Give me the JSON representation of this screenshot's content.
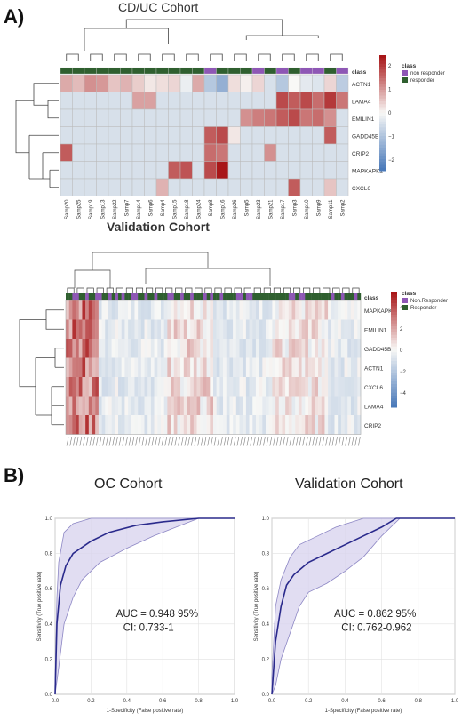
{
  "panelA": {
    "letter": "A)",
    "heatmap1": {
      "title": "CD/UC Cohort",
      "class_header": "class",
      "legend_title": "class",
      "legend_items": [
        {
          "label": "non responder",
          "color": "#8e57b5"
        },
        {
          "label": "responder",
          "color": "#2f5f2f"
        }
      ],
      "scale_ticks": [
        "2",
        "1",
        "0",
        "−1",
        "−2"
      ],
      "genes": [
        "ACTN1",
        "LAMA4",
        "EMILIN1",
        "GADD45B",
        "CRIP2",
        "MAPKAPK2",
        "CXCL6"
      ],
      "samples": [
        "Samp20",
        "Samp25",
        "Samp19",
        "Samp13",
        "Samp22",
        "Samp7",
        "Samp14",
        "Samp6",
        "Samp4",
        "Samp15",
        "Samp18",
        "Samp24",
        "Samp8",
        "Samp16",
        "Samp26",
        "Samp5",
        "Samp23",
        "Samp21",
        "Samp17",
        "Samp3",
        "Samp10",
        "Samp9",
        "Samp11",
        "Samp2"
      ],
      "classes": [
        "r",
        "r",
        "r",
        "r",
        "r",
        "r",
        "r",
        "r",
        "r",
        "r",
        "r",
        "r",
        "n",
        "r",
        "r",
        "r",
        "n",
        "r",
        "n",
        "r",
        "n",
        "n",
        "r",
        "n"
      ],
      "values": [
        [
          0.9,
          0.7,
          1.2,
          1.1,
          0.6,
          0.8,
          0.5,
          0.2,
          0.3,
          0.4,
          -0.2,
          0.9,
          -1.0,
          -1.5,
          0.3,
          0.1,
          0.4,
          -0.5,
          -1.0,
          0.0,
          -0.3,
          -0.4,
          0.4,
          -0.9
        ],
        [
          -0.5,
          -0.5,
          -0.5,
          -0.5,
          -0.5,
          -0.5,
          1.0,
          1.0,
          -0.5,
          -0.5,
          -0.5,
          -0.5,
          -0.5,
          -0.5,
          -0.5,
          -0.5,
          -0.5,
          -0.5,
          2.0,
          1.8,
          2.0,
          1.6,
          2.2,
          1.5
        ],
        [
          -0.5,
          -0.5,
          -0.5,
          -0.5,
          -0.5,
          -0.5,
          -0.5,
          -0.5,
          -0.5,
          -0.5,
          -0.5,
          -0.5,
          -0.5,
          -0.5,
          -0.5,
          1.2,
          1.4,
          1.5,
          1.8,
          2.0,
          1.5,
          1.6,
          1.2,
          -0.5
        ],
        [
          -0.5,
          -0.5,
          -0.5,
          -0.5,
          -0.5,
          -0.5,
          -0.5,
          -0.5,
          -0.5,
          -0.5,
          -0.5,
          -0.5,
          1.8,
          2.0,
          0.2,
          -0.5,
          -0.5,
          -0.5,
          -0.5,
          -0.5,
          -0.5,
          -0.5,
          1.8,
          -0.5
        ],
        [
          1.8,
          -0.5,
          -0.5,
          -0.5,
          -0.5,
          -0.5,
          -0.5,
          -0.5,
          -0.5,
          -0.5,
          -0.5,
          -0.5,
          1.6,
          1.5,
          -0.5,
          -0.5,
          -0.5,
          1.2,
          -0.5,
          -0.5,
          -0.5,
          -0.5,
          -0.5,
          -0.5
        ],
        [
          -0.5,
          -0.5,
          -0.5,
          -0.5,
          -0.5,
          -0.5,
          -0.5,
          -0.5,
          -0.5,
          1.8,
          1.9,
          -0.5,
          2.0,
          2.6,
          -0.5,
          -0.5,
          -0.5,
          -0.5,
          -0.5,
          -0.5,
          -0.5,
          -0.5,
          -0.5,
          -0.5
        ],
        [
          -0.5,
          -0.5,
          -0.5,
          -0.5,
          -0.5,
          -0.5,
          -0.5,
          -0.5,
          0.8,
          -0.5,
          -0.5,
          -0.5,
          -0.5,
          -0.5,
          -0.5,
          -0.5,
          -0.5,
          -0.5,
          -0.5,
          1.8,
          -0.5,
          -0.5,
          0.6,
          -0.5
        ]
      ]
    },
    "heatmap2": {
      "title": "Validation Cohort",
      "class_header": "class",
      "legend_title": "class",
      "legend_items": [
        {
          "label": "Non.Responder",
          "color": "#8e57b5"
        },
        {
          "label": "Responder",
          "color": "#2f5f2f"
        }
      ],
      "scale_ticks": [
        "4",
        "2",
        "0",
        "−2",
        "−4"
      ],
      "genes": [
        "MAPKAPK2",
        "EMILIN1",
        "GADD45B",
        "ACTN1",
        "CXCL6",
        "LAMA4",
        "CRIP2"
      ]
    }
  },
  "panelB": {
    "letter": "B)",
    "roc1": {
      "title": "OC Cohort",
      "auc_line1": "AUC = 0.948 95%",
      "auc_line2": "CI: 0.733-1",
      "xlabel": "1-Specificity (False positive rate)",
      "ylabel": "Sensitivity (True positive rate)",
      "ticks": [
        "0.0",
        "0.2",
        "0.4",
        "0.6",
        "0.8",
        "1.0"
      ]
    },
    "roc2": {
      "title": "Validation Cohort",
      "auc_line1": "AUC = 0.862 95%",
      "auc_line2": "CI: 0.762-0.962",
      "xlabel": "1-Specificity (False positive rate)",
      "ylabel": "Sensitivity (True positive rate)",
      "ticks": [
        "0.0",
        "0.2",
        "0.4",
        "0.6",
        "0.8",
        "1.0"
      ]
    }
  },
  "chart_data": [
    {
      "type": "line",
      "title": "OC Cohort",
      "xlabel": "1-Specificity (False positive rate)",
      "ylabel": "Sensitivity (True positive rate)",
      "xlim": [
        0,
        1
      ],
      "ylim": [
        0,
        1
      ],
      "grid": true,
      "series": [
        {
          "x": [
            0,
            0.01,
            0.03,
            0.06,
            0.1,
            0.2,
            0.3,
            0.45,
            0.6,
            0.8,
            1.0
          ],
          "values": [
            0,
            0.4,
            0.62,
            0.73,
            0.8,
            0.87,
            0.92,
            0.96,
            0.98,
            1.0,
            1.0
          ]
        },
        {
          "x": [
            0,
            0.01,
            0.02,
            0.05,
            0.1,
            0.2,
            0.35,
            0.6,
            0.8,
            1.0
          ],
          "values": [
            0.1,
            0.55,
            0.75,
            0.92,
            0.97,
            1.0,
            1.0,
            1.0,
            1.0,
            1.0
          ]
        },
        {
          "x": [
            0,
            0.02,
            0.05,
            0.1,
            0.15,
            0.25,
            0.4,
            0.55,
            0.7,
            0.8,
            1.0
          ],
          "values": [
            0,
            0.15,
            0.4,
            0.55,
            0.65,
            0.75,
            0.83,
            0.9,
            0.96,
            1.0,
            1.0
          ]
        }
      ]
    },
    {
      "type": "line",
      "title": "Validation Cohort",
      "xlabel": "1-Specificity (False positive rate)",
      "ylabel": "Sensitivity (True positive rate)",
      "xlim": [
        0,
        1
      ],
      "ylim": [
        0,
        1
      ],
      "grid": true,
      "series": [
        {
          "x": [
            0,
            0.02,
            0.05,
            0.08,
            0.12,
            0.2,
            0.3,
            0.4,
            0.5,
            0.6,
            0.68,
            1.0
          ],
          "values": [
            0,
            0.3,
            0.5,
            0.62,
            0.68,
            0.75,
            0.8,
            0.85,
            0.9,
            0.95,
            1.0,
            1.0
          ]
        },
        {
          "x": [
            0,
            0.02,
            0.05,
            0.1,
            0.15,
            0.25,
            0.35,
            0.5,
            0.6,
            1.0
          ],
          "values": [
            0.1,
            0.5,
            0.65,
            0.78,
            0.85,
            0.9,
            0.95,
            1.0,
            1.0,
            1.0
          ]
        },
        {
          "x": [
            0,
            0.02,
            0.05,
            0.1,
            0.15,
            0.2,
            0.3,
            0.4,
            0.5,
            0.6,
            0.7,
            1.0
          ],
          "values": [
            0,
            0.05,
            0.2,
            0.35,
            0.5,
            0.58,
            0.63,
            0.7,
            0.78,
            0.9,
            1.0,
            1.0
          ]
        }
      ]
    }
  ]
}
